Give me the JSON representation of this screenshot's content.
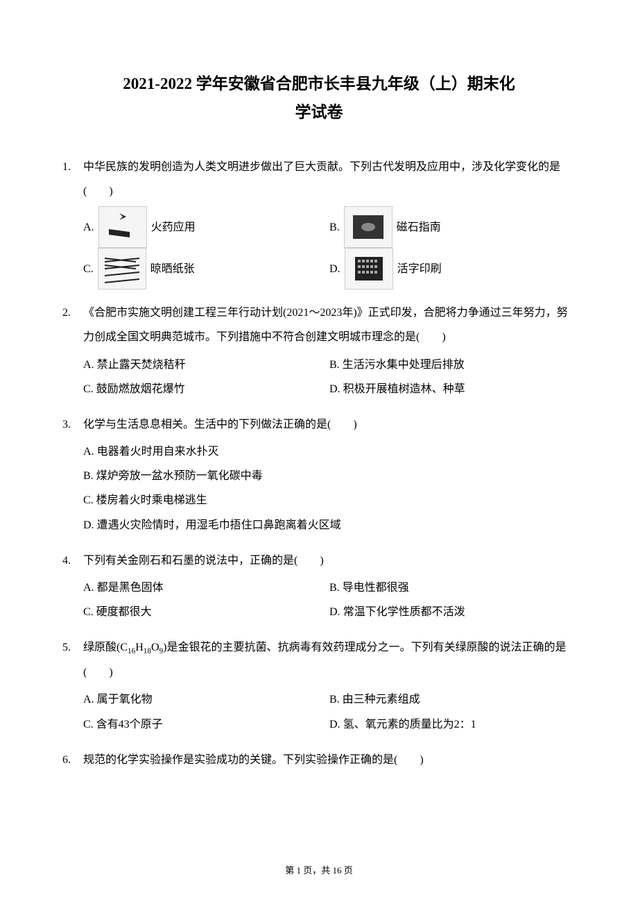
{
  "title_line1": "2021-2022 学年安徽省合肥市长丰县九年级（上）期末化",
  "title_line2": "学试卷",
  "questions": [
    {
      "num": "1.",
      "stem": "中华民族的发明创造为人类文明进步做出了巨大贡献。下列古代发明及应用中，涉及化学变化的是(　　)",
      "type": "image-options",
      "options": [
        {
          "label": "A.",
          "text": "火药应用",
          "icon": "gunpowder"
        },
        {
          "label": "B.",
          "text": "磁石指南",
          "icon": "compass"
        },
        {
          "label": "C.",
          "text": "晾晒纸张",
          "icon": "paper"
        },
        {
          "label": "D.",
          "text": "活字印刷",
          "icon": "type"
        }
      ]
    },
    {
      "num": "2.",
      "stem": "《合肥市实施文明创建工程三年行动计划(2021～2023年)》正式印发，合肥将力争通过三年努力，努力创成全国文明典范城市。下列措施中不符合创建文明城市理念的是(　　)",
      "type": "two-col",
      "options": [
        {
          "label": "A.",
          "text": "禁止露天焚烧秸秆"
        },
        {
          "label": "B.",
          "text": "生活污水集中处理后排放"
        },
        {
          "label": "C.",
          "text": "鼓励燃放烟花爆竹"
        },
        {
          "label": "D.",
          "text": "积极开展植树造林、种草"
        }
      ]
    },
    {
      "num": "3.",
      "stem": "化学与生活息息相关。生活中的下列做法正确的是(　　)",
      "type": "one-col",
      "options": [
        {
          "label": "A.",
          "text": "电器着火时用自来水扑灭"
        },
        {
          "label": "B.",
          "text": "煤炉旁放一盆水预防一氧化碳中毒"
        },
        {
          "label": "C.",
          "text": "楼房着火时乘电梯逃生"
        },
        {
          "label": "D.",
          "text": "遭遇火灾险情时，用湿毛巾捂住口鼻跑离着火区域"
        }
      ]
    },
    {
      "num": "4.",
      "stem": "下列有关金刚石和石墨的说法中，正确的是(　　)",
      "type": "two-col",
      "options": [
        {
          "label": "A.",
          "text": "都是黑色固体"
        },
        {
          "label": "B.",
          "text": "导电性都很强"
        },
        {
          "label": "C.",
          "text": "硬度都很大"
        },
        {
          "label": "D.",
          "text": "常温下化学性质都不活泼"
        }
      ]
    },
    {
      "num": "5.",
      "stem_html": "绿原酸(<span class=\"times\">C<sub>16</sub>H<sub>18</sub>O<sub>9</sub></span>)是金银花的主要抗菌、抗病毒有效药理成分之一。下列有关绿原酸的说法正确的是(　　)",
      "type": "two-col",
      "options": [
        {
          "label": "A.",
          "text": "属于氧化物"
        },
        {
          "label": "B.",
          "text": "由三种元素组成"
        },
        {
          "label": "C.",
          "text": "含有43个原子"
        },
        {
          "label": "D.",
          "text": "氢、氧元素的质量比为2：1"
        }
      ]
    },
    {
      "num": "6.",
      "stem": "规范的化学实验操作是实验成功的关键。下列实验操作正确的是(　　)",
      "type": "none",
      "options": []
    }
  ],
  "footer": {
    "prefix": "第 ",
    "current": "1",
    "mid": " 页，共 ",
    "total": "16",
    "suffix": " 页"
  },
  "colors": {
    "bg": "#ffffff",
    "text": "#000000",
    "img_bg": "#f5f5f5",
    "img_border": "#cccccc"
  }
}
